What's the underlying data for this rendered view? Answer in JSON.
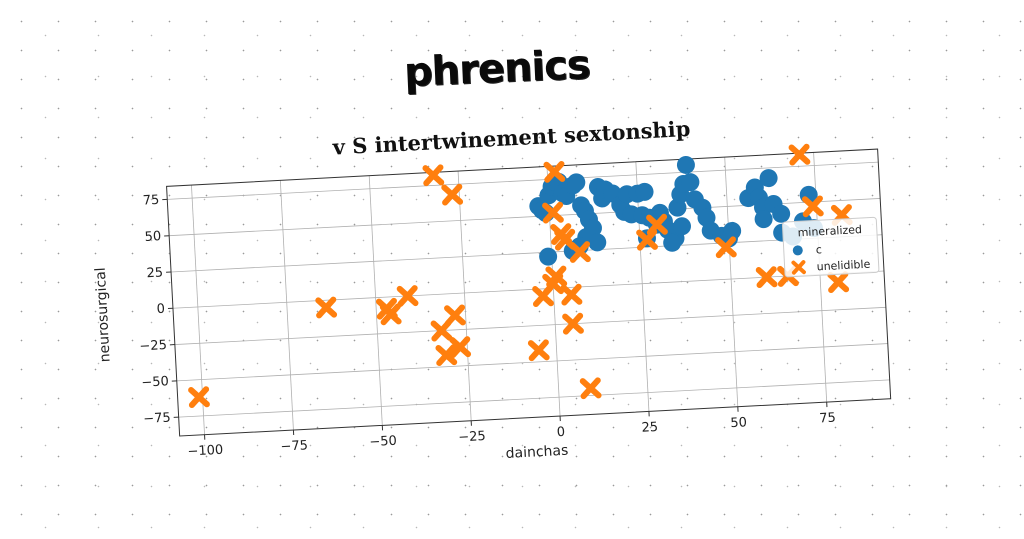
{
  "figure_title": "phrenics",
  "chart_data": {
    "type": "scatter",
    "title": "v S intertwinement sextonship",
    "xlabel": "dainchas",
    "ylabel": "neurosurgical",
    "xlim": [
      -107,
      93
    ],
    "ylim": [
      -88,
      84
    ],
    "xticks": [
      -100,
      -75,
      -50,
      -25,
      0,
      25,
      50,
      75
    ],
    "yticks": [
      -75,
      -50,
      -25,
      0,
      25,
      50,
      75
    ],
    "xtick_labels": [
      "−100",
      "−75",
      "−50",
      "−25",
      "0",
      "25",
      "50",
      "75"
    ],
    "ytick_labels": [
      "−75",
      "−50",
      "−25",
      "0",
      "25",
      "50",
      "75"
    ],
    "grid": true,
    "legend_title": "mineralized",
    "legend_position": "right",
    "series": [
      {
        "name": "c",
        "marker": "circle",
        "color": "#1f77b4",
        "points": [
          [
            -3,
            57
          ],
          [
            -2,
            54
          ],
          [
            -1,
            52
          ],
          [
            0,
            64
          ],
          [
            1,
            70
          ],
          [
            2,
            73
          ],
          [
            3,
            73
          ],
          [
            4,
            65
          ],
          [
            5,
            63
          ],
          [
            7,
            70
          ],
          [
            8,
            72
          ],
          [
            9,
            56
          ],
          [
            10,
            52
          ],
          [
            11,
            46
          ],
          [
            12,
            40
          ],
          [
            10,
            34
          ],
          [
            13,
            30
          ],
          [
            8,
            28
          ],
          [
            6,
            25
          ],
          [
            -1,
            22
          ],
          [
            14,
            68
          ],
          [
            15,
            60
          ],
          [
            16,
            66
          ],
          [
            18,
            63
          ],
          [
            20,
            55
          ],
          [
            21,
            50
          ],
          [
            23,
            48
          ],
          [
            26,
            47
          ],
          [
            28,
            45
          ],
          [
            30,
            40
          ],
          [
            31,
            48
          ],
          [
            32,
            42
          ],
          [
            33,
            36
          ],
          [
            35,
            30
          ],
          [
            36,
            51
          ],
          [
            37,
            60
          ],
          [
            38,
            67
          ],
          [
            39,
            80
          ],
          [
            40,
            68
          ],
          [
            41,
            56
          ],
          [
            43,
            50
          ],
          [
            44,
            43
          ],
          [
            45,
            34
          ],
          [
            48,
            30
          ],
          [
            50,
            28
          ],
          [
            51,
            33
          ],
          [
            56,
            55
          ],
          [
            58,
            62
          ],
          [
            59,
            55
          ],
          [
            60,
            48
          ],
          [
            60,
            40
          ],
          [
            62,
            68
          ],
          [
            63,
            50
          ],
          [
            65,
            43
          ],
          [
            65,
            30
          ],
          [
            68,
            27
          ],
          [
            71,
            37
          ],
          [
            73,
            55
          ],
          [
            74,
            32
          ],
          [
            22,
            62
          ],
          [
            25,
            62
          ],
          [
            27,
            63
          ],
          [
            29,
            44
          ],
          [
            34,
            27
          ],
          [
            37,
            38
          ],
          [
            27,
            31
          ]
        ]
      },
      {
        "name": "unelidible",
        "marker": "x",
        "color": "#ff7f0e",
        "points": [
          [
            -32,
            82
          ],
          [
            -27,
            68
          ],
          [
            -101,
            -62
          ],
          [
            -64,
            -5
          ],
          [
            -47,
            -8
          ],
          [
            -46,
            -12
          ],
          [
            -41,
            0
          ],
          [
            -32,
            -25
          ],
          [
            -28,
            -15
          ],
          [
            -31,
            -42
          ],
          [
            -27,
            -37
          ],
          [
            -5,
            -42
          ],
          [
            -3,
            -5
          ],
          [
            0,
            3
          ],
          [
            1,
            8
          ],
          [
            5,
            -5
          ],
          [
            5,
            -25
          ],
          [
            9,
            -70
          ],
          [
            4,
            33
          ],
          [
            3,
            37
          ],
          [
            8,
            24
          ],
          [
            1,
            52
          ],
          [
            2,
            80
          ],
          [
            27,
            30
          ],
          [
            30,
            40
          ],
          [
            49,
            22
          ],
          [
            60,
            0
          ],
          [
            66,
            0
          ],
          [
            74,
            47
          ],
          [
            80,
            -6
          ],
          [
            82,
            40
          ],
          [
            71,
            83
          ]
        ]
      }
    ]
  }
}
